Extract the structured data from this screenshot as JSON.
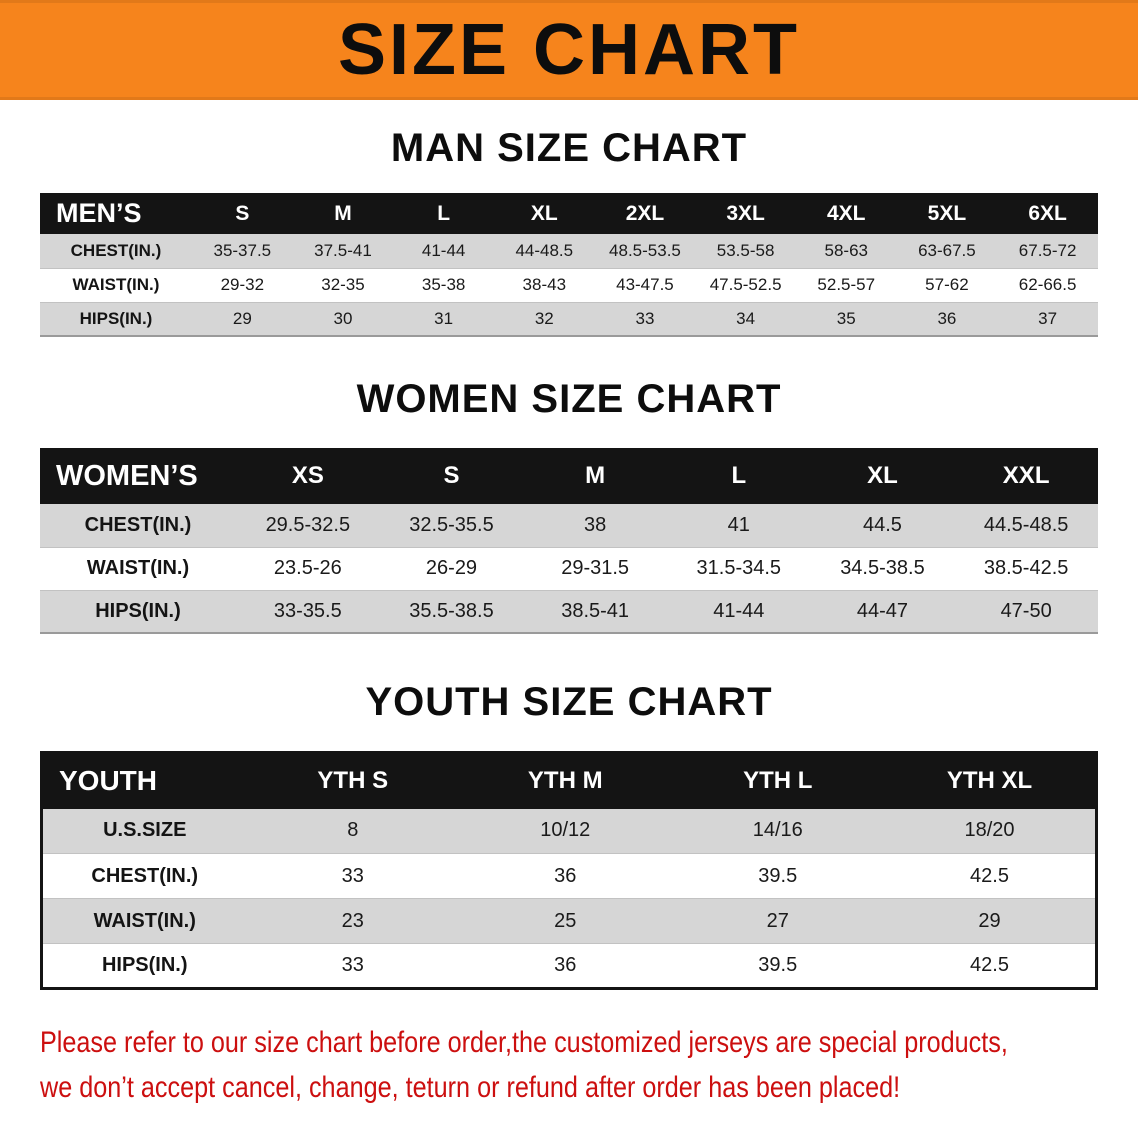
{
  "banner": {
    "title": "SIZE CHART",
    "bg_color": "#f6841c"
  },
  "men": {
    "heading": "MAN SIZE CHART",
    "table": {
      "header": [
        "MEN’S",
        "S",
        "M",
        "L",
        "XL",
        "2XL",
        "3XL",
        "4XL",
        "5XL",
        "6XL"
      ],
      "rows": [
        [
          "CHEST(IN.)",
          "35-37.5",
          "37.5-41",
          "41-44",
          "44-48.5",
          "48.5-53.5",
          "53.5-58",
          "58-63",
          "63-67.5",
          "67.5-72"
        ],
        [
          "WAIST(IN.)",
          "29-32",
          "32-35",
          "35-38",
          "38-43",
          "43-47.5",
          "47.5-52.5",
          "52.5-57",
          "57-62",
          "62-66.5"
        ],
        [
          "HIPS(IN.)",
          "29",
          "30",
          "31",
          "32",
          "33",
          "34",
          "35",
          "36",
          "37"
        ]
      ]
    }
  },
  "women": {
    "heading": "WOMEN SIZE CHART",
    "table": {
      "header": [
        "WOMEN’S",
        "XS",
        "S",
        "M",
        "L",
        "XL",
        "XXL"
      ],
      "rows": [
        [
          "CHEST(IN.)",
          "29.5-32.5",
          "32.5-35.5",
          "38",
          "41",
          "44.5",
          "44.5-48.5"
        ],
        [
          "WAIST(IN.)",
          "23.5-26",
          "26-29",
          "29-31.5",
          "31.5-34.5",
          "34.5-38.5",
          "38.5-42.5"
        ],
        [
          "HIPS(IN.)",
          "33-35.5",
          "35.5-38.5",
          "38.5-41",
          "41-44",
          "44-47",
          "47-50"
        ]
      ]
    }
  },
  "youth": {
    "heading": "YOUTH SIZE CHART",
    "table": {
      "header": [
        "YOUTH",
        "YTH S",
        "YTH M",
        "YTH L",
        "YTH XL"
      ],
      "rows": [
        [
          "U.S.SIZE",
          "8",
          "10/12",
          "14/16",
          "18/20"
        ],
        [
          "CHEST(IN.)",
          "33",
          "36",
          "39.5",
          "42.5"
        ],
        [
          "WAIST(IN.)",
          "23",
          "25",
          "27",
          "29"
        ],
        [
          "HIPS(IN.)",
          "33",
          "36",
          "39.5",
          "42.5"
        ]
      ]
    }
  },
  "footer": {
    "line1": "Please refer to our size chart before order,the customized jerseys are special products,",
    "line2": "we don’t accept cancel, change, teturn or refund after order has been placed!",
    "text_color": "#cc0f0f"
  }
}
